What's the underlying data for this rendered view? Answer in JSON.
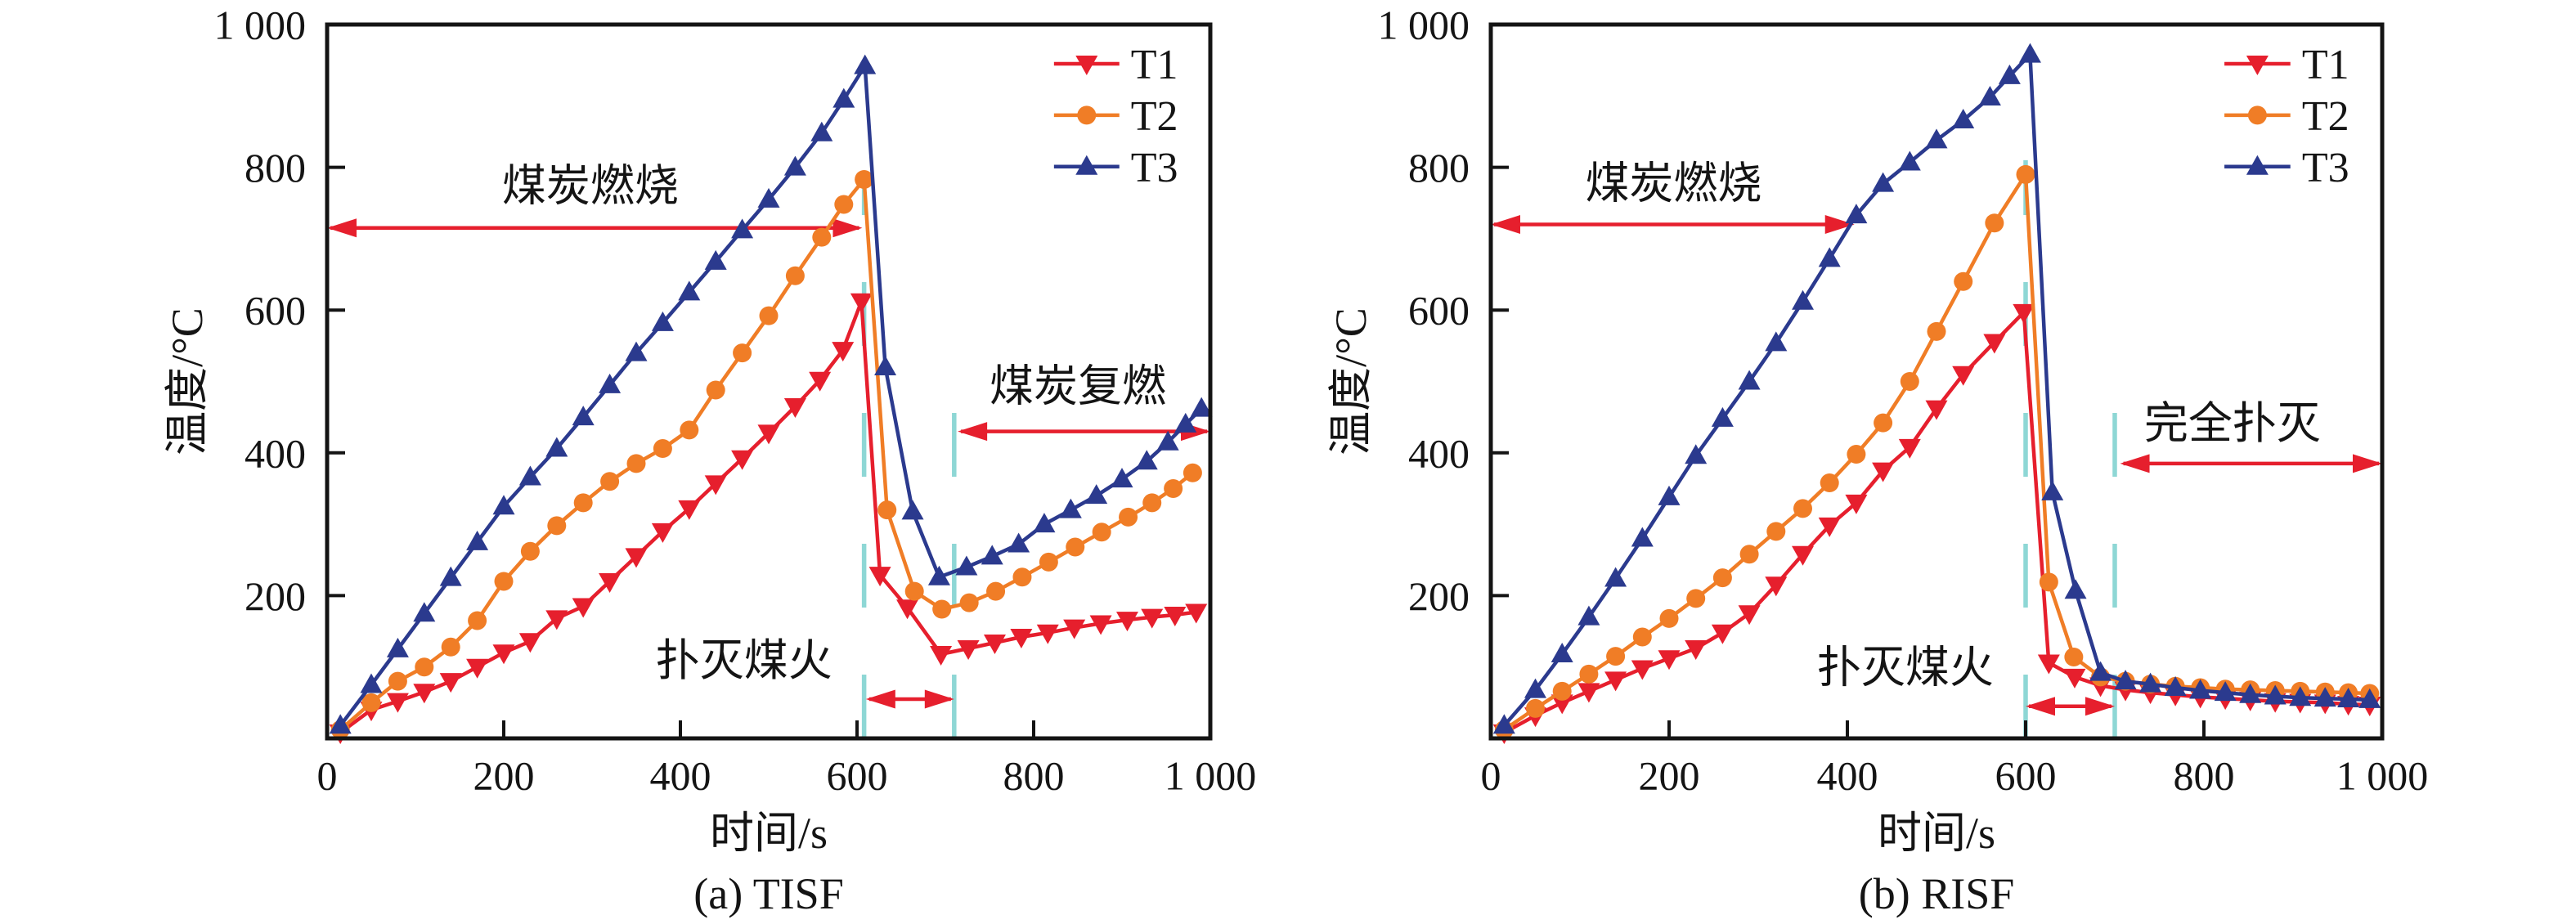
{
  "page": {
    "background": "#ffffff"
  },
  "colors": {
    "t1_red": "#e61f2d",
    "t2_orange": "#f07d26",
    "t3_blue": "#2b3a8e",
    "phase_line_cyan": "#8ed7d5",
    "annotation_arrow_red": "#e61f2d",
    "axis_black": "#141414"
  },
  "chart_data": [
    {
      "type": "line",
      "panel": "a",
      "title": "(a) TISF",
      "xlabel": "时间/s",
      "ylabel": "温度/°C",
      "xlim": [
        0,
        1000
      ],
      "ylim": [
        0,
        1000
      ],
      "grid": false,
      "legend_position": "top-right-inside",
      "xticks": [
        {
          "v": 0,
          "label": "0"
        },
        {
          "v": 200,
          "label": "200"
        },
        {
          "v": 400,
          "label": "400"
        },
        {
          "v": 600,
          "label": "600"
        },
        {
          "v": 800,
          "label": "800"
        },
        {
          "v": 1000,
          "label": "1 000"
        }
      ],
      "yticks": [
        {
          "v": 200,
          "label": "200"
        },
        {
          "v": 400,
          "label": "400"
        },
        {
          "v": 600,
          "label": "600"
        },
        {
          "v": 800,
          "label": "800"
        },
        {
          "v": 1000,
          "label": "1 000"
        }
      ],
      "phase_lines": [
        {
          "x": 608,
          "y_top": 795
        },
        {
          "x": 710,
          "y_top": 515
        }
      ],
      "annotations": [
        {
          "id": "coal-burning",
          "label": "煤炭燃烧",
          "arrow_y": 715,
          "x1": 0,
          "x2": 606,
          "label_x": 298,
          "label_y": 775
        },
        {
          "id": "extinguish-coal-fire",
          "label": "扑灭煤火",
          "arrow_y": 55,
          "x1": 610,
          "x2": 710,
          "label_x": 472,
          "label_y": 110
        },
        {
          "id": "coal-reignition",
          "label": "煤炭复燃",
          "arrow_y": 430,
          "x1": 714,
          "x2": 1000,
          "label_x": 850,
          "label_y": 494
        }
      ],
      "series": [
        {
          "name": "T1",
          "color": "#e61f2d",
          "marker": "triangle-down",
          "points": [
            [
              15,
              8
            ],
            [
              50,
              40
            ],
            [
              80,
              52
            ],
            [
              110,
              65
            ],
            [
              140,
              80
            ],
            [
              170,
              100
            ],
            [
              200,
              120
            ],
            [
              230,
              136
            ],
            [
              260,
              168
            ],
            [
              290,
              185
            ],
            [
              320,
              220
            ],
            [
              350,
              255
            ],
            [
              380,
              290
            ],
            [
              410,
              322
            ],
            [
              440,
              357
            ],
            [
              470,
              392
            ],
            [
              500,
              428
            ],
            [
              530,
              465
            ],
            [
              558,
              502
            ],
            [
              584,
              544
            ],
            [
              605,
              612
            ],
            [
              626,
              229
            ],
            [
              657,
              183
            ],
            [
              695,
              118
            ],
            [
              726,
              126
            ],
            [
              756,
              134
            ],
            [
              786,
              142
            ],
            [
              816,
              148
            ],
            [
              846,
              155
            ],
            [
              876,
              161
            ],
            [
              906,
              166
            ],
            [
              934,
              170
            ],
            [
              960,
              173
            ],
            [
              984,
              177
            ]
          ]
        },
        {
          "name": "T2",
          "color": "#f07d26",
          "marker": "circle",
          "points": [
            [
              15,
              12
            ],
            [
              50,
              50
            ],
            [
              80,
              80
            ],
            [
              110,
              100
            ],
            [
              140,
              128
            ],
            [
              170,
              165
            ],
            [
              200,
              220
            ],
            [
              230,
              262
            ],
            [
              260,
              298
            ],
            [
              290,
              330
            ],
            [
              320,
              360
            ],
            [
              350,
              385
            ],
            [
              380,
              406
            ],
            [
              410,
              432
            ],
            [
              440,
              488
            ],
            [
              470,
              540
            ],
            [
              500,
              592
            ],
            [
              530,
              648
            ],
            [
              560,
              702
            ],
            [
              585,
              748
            ],
            [
              608,
              783
            ],
            [
              634,
              320
            ],
            [
              665,
              206
            ],
            [
              696,
              181
            ],
            [
              727,
              190
            ],
            [
              757,
              206
            ],
            [
              787,
              226
            ],
            [
              817,
              247
            ],
            [
              847,
              268
            ],
            [
              877,
              289
            ],
            [
              907,
              310
            ],
            [
              934,
              330
            ],
            [
              958,
              350
            ],
            [
              980,
              372
            ]
          ]
        },
        {
          "name": "T3",
          "color": "#2b3a8e",
          "marker": "triangle-up",
          "points": [
            [
              15,
              18
            ],
            [
              50,
              75
            ],
            [
              80,
              125
            ],
            [
              110,
              175
            ],
            [
              140,
              225
            ],
            [
              170,
              275
            ],
            [
              200,
              325
            ],
            [
              230,
              366
            ],
            [
              260,
              406
            ],
            [
              290,
              450
            ],
            [
              320,
              495
            ],
            [
              350,
              540
            ],
            [
              380,
              582
            ],
            [
              410,
              625
            ],
            [
              440,
              668
            ],
            [
              470,
              712
            ],
            [
              500,
              755
            ],
            [
              530,
              800
            ],
            [
              560,
              848
            ],
            [
              585,
              895
            ],
            [
              609,
              942
            ],
            [
              632,
              520
            ],
            [
              663,
              318
            ],
            [
              693,
              226
            ],
            [
              724,
              240
            ],
            [
              753,
              255
            ],
            [
              783,
              272
            ],
            [
              812,
              300
            ],
            [
              842,
              320
            ],
            [
              871,
              340
            ],
            [
              900,
              363
            ],
            [
              928,
              388
            ],
            [
              952,
              415
            ],
            [
              972,
              440
            ],
            [
              990,
              462
            ]
          ]
        }
      ]
    },
    {
      "type": "line",
      "panel": "b",
      "title": "(b) RISF",
      "xlabel": "时间/s",
      "ylabel": "温度/°C",
      "xlim": [
        0,
        1000
      ],
      "ylim": [
        0,
        1000
      ],
      "grid": false,
      "legend_position": "top-right-inside",
      "xticks": [
        {
          "v": 0,
          "label": "0"
        },
        {
          "v": 200,
          "label": "200"
        },
        {
          "v": 400,
          "label": "400"
        },
        {
          "v": 600,
          "label": "600"
        },
        {
          "v": 800,
          "label": "800"
        },
        {
          "v": 1000,
          "label": "1 000"
        }
      ],
      "yticks": [
        {
          "v": 200,
          "label": "200"
        },
        {
          "v": 400,
          "label": "400"
        },
        {
          "v": 600,
          "label": "600"
        },
        {
          "v": 800,
          "label": "800"
        },
        {
          "v": 1000,
          "label": "1 000"
        }
      ],
      "phase_lines": [
        {
          "x": 600,
          "y_top": 810
        },
        {
          "x": 700,
          "y_top": 500
        }
      ],
      "annotations": [
        {
          "id": "coal-burning",
          "label": "煤炭燃烧",
          "arrow_y": 720,
          "x1": 0,
          "x2": 408,
          "label_x": 205,
          "label_y": 778
        },
        {
          "id": "extinguish-coal-fire",
          "label": "扑灭煤火",
          "arrow_y": 45,
          "x1": 600,
          "x2": 700,
          "label_x": 465,
          "label_y": 100
        },
        {
          "id": "complete-extinguishment",
          "label": "完全扑灭",
          "arrow_y": 385,
          "x1": 706,
          "x2": 1000,
          "label_x": 832,
          "label_y": 442
        }
      ],
      "series": [
        {
          "name": "T1",
          "color": "#e61f2d",
          "marker": "triangle-down",
          "points": [
            [
              15,
              8
            ],
            [
              50,
              32
            ],
            [
              80,
              50
            ],
            [
              110,
              66
            ],
            [
              140,
              82
            ],
            [
              170,
              98
            ],
            [
              200,
              112
            ],
            [
              230,
              126
            ],
            [
              260,
              148
            ],
            [
              290,
              175
            ],
            [
              320,
              215
            ],
            [
              350,
              258
            ],
            [
              380,
              298
            ],
            [
              410,
              330
            ],
            [
              440,
              375
            ],
            [
              470,
              408
            ],
            [
              500,
              462
            ],
            [
              530,
              510
            ],
            [
              565,
              555
            ],
            [
              598,
              597
            ],
            [
              626,
              106
            ],
            [
              655,
              86
            ],
            [
              684,
              74
            ],
            [
              712,
              68
            ],
            [
              740,
              64
            ],
            [
              768,
              61
            ],
            [
              796,
              58
            ],
            [
              824,
              56
            ],
            [
              852,
              54
            ],
            [
              880,
              52
            ],
            [
              908,
              51
            ],
            [
              936,
              50
            ],
            [
              962,
              48
            ],
            [
              986,
              47
            ]
          ]
        },
        {
          "name": "T2",
          "color": "#f07d26",
          "marker": "circle",
          "points": [
            [
              15,
              12
            ],
            [
              50,
              42
            ],
            [
              80,
              66
            ],
            [
              110,
              90
            ],
            [
              140,
              115
            ],
            [
              170,
              142
            ],
            [
              200,
              168
            ],
            [
              230,
              196
            ],
            [
              260,
              225
            ],
            [
              290,
              258
            ],
            [
              320,
              290
            ],
            [
              350,
              322
            ],
            [
              380,
              358
            ],
            [
              410,
              398
            ],
            [
              440,
              442
            ],
            [
              470,
              500
            ],
            [
              500,
              570
            ],
            [
              530,
              640
            ],
            [
              565,
              722
            ],
            [
              600,
              790
            ],
            [
              626,
              219
            ],
            [
              654,
              114
            ],
            [
              684,
              86
            ],
            [
              712,
              80
            ],
            [
              740,
              76
            ],
            [
              768,
              73
            ],
            [
              796,
              71
            ],
            [
              824,
              69
            ],
            [
              852,
              68
            ],
            [
              880,
              67
            ],
            [
              908,
              66
            ],
            [
              936,
              65
            ],
            [
              962,
              64
            ],
            [
              986,
              63
            ]
          ]
        },
        {
          "name": "T3",
          "color": "#2b3a8e",
          "marker": "triangle-up",
          "points": [
            [
              15,
              18
            ],
            [
              50,
              68
            ],
            [
              80,
              118
            ],
            [
              110,
              170
            ],
            [
              140,
              224
            ],
            [
              170,
              280
            ],
            [
              200,
              338
            ],
            [
              230,
              396
            ],
            [
              260,
              448
            ],
            [
              290,
              500
            ],
            [
              320,
              554
            ],
            [
              350,
              612
            ],
            [
              380,
              672
            ],
            [
              410,
              733
            ],
            [
              440,
              777
            ],
            [
              470,
              807
            ],
            [
              500,
              838
            ],
            [
              530,
              866
            ],
            [
              560,
              898
            ],
            [
              582,
              928
            ],
            [
              605,
              958
            ],
            [
              630,
              345
            ],
            [
              656,
              207
            ],
            [
              684,
              92
            ],
            [
              712,
              80
            ],
            [
              740,
              76
            ],
            [
              768,
              71
            ],
            [
              796,
              67
            ],
            [
              824,
              64
            ],
            [
              852,
              61
            ],
            [
              880,
              59
            ],
            [
              908,
              57
            ],
            [
              936,
              56
            ],
            [
              962,
              55
            ],
            [
              986,
              54
            ]
          ]
        }
      ]
    }
  ]
}
